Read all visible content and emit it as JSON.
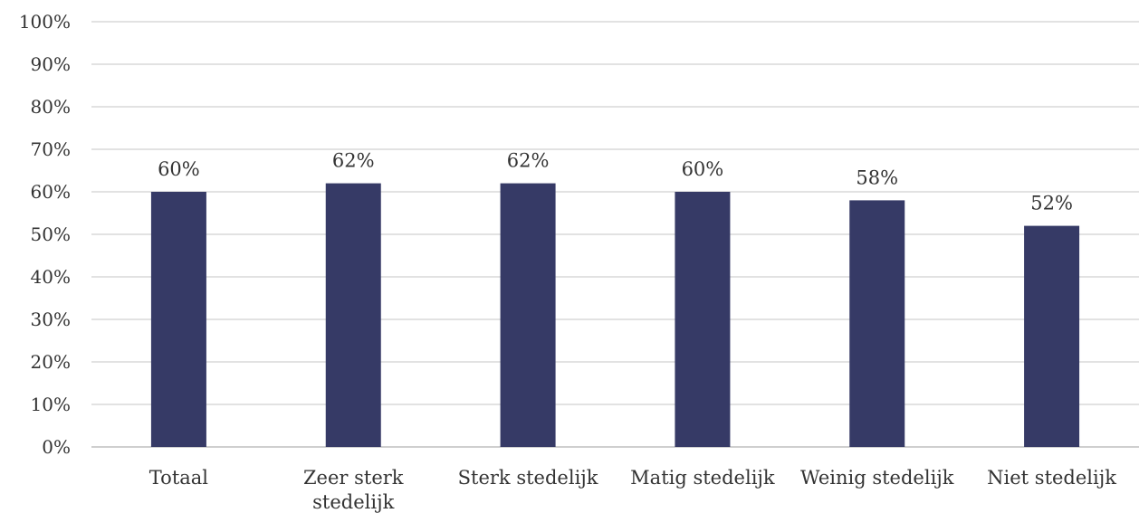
{
  "chart_data": {
    "type": "bar",
    "categories": [
      "Totaal",
      "Zeer sterk stedelijk",
      "Sterk stedelijk",
      "Matig stedelijk",
      "Weinig stedelijk",
      "Niet stedelijk"
    ],
    "category_label_lines": [
      [
        "Totaal"
      ],
      [
        "Zeer sterk",
        "stedelijk"
      ],
      [
        "Sterk stedelijk"
      ],
      [
        "Matig stedelijk"
      ],
      [
        "Weinig stedelijk"
      ],
      [
        "Niet stedelijk"
      ]
    ],
    "values": [
      60,
      62,
      62,
      60,
      58,
      52
    ],
    "data_labels": [
      "60%",
      "62%",
      "62%",
      "60%",
      "58%",
      "52%"
    ],
    "bar_color": "#363a66",
    "ylim": [
      0,
      100
    ],
    "yticks": [
      0,
      10,
      20,
      30,
      40,
      50,
      60,
      70,
      80,
      90,
      100
    ],
    "ytick_labels": [
      "0%",
      "10%",
      "20%",
      "30%",
      "40%",
      "50%",
      "60%",
      "70%",
      "80%",
      "90%",
      "100%"
    ],
    "grid": true,
    "title": "",
    "xlabel": "",
    "ylabel": ""
  }
}
